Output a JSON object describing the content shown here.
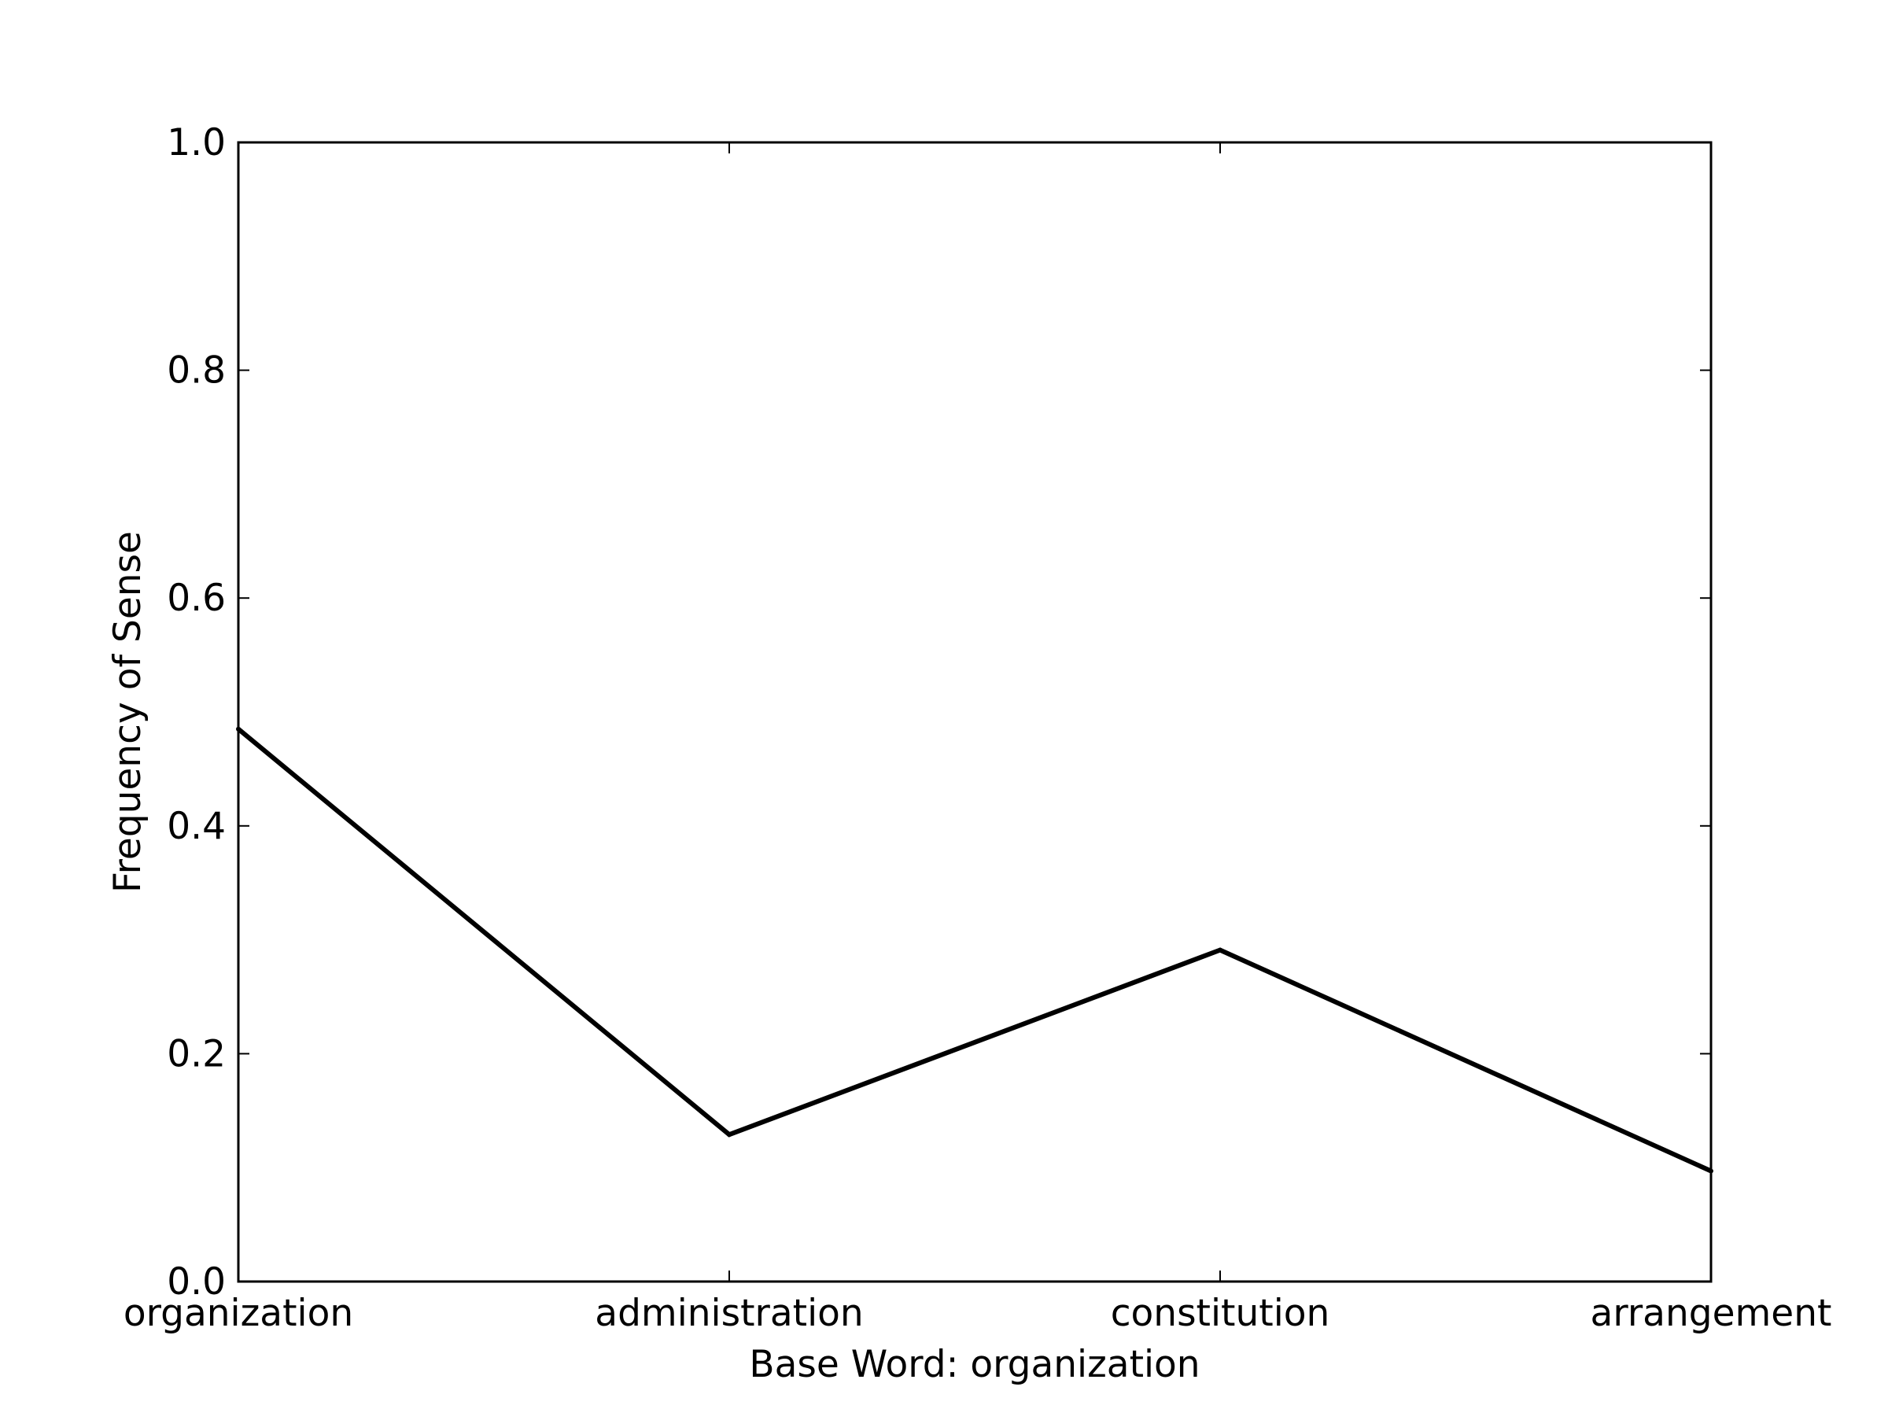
{
  "chart_data": {
    "type": "line",
    "title": "",
    "xlabel": "Base Word: organization",
    "ylabel": "Frequency of Sense",
    "categories": [
      "organization",
      "administration",
      "constitution",
      "arrangement"
    ],
    "series": [
      {
        "values": [
          0.485,
          0.129,
          0.291,
          0.097
        ]
      }
    ],
    "ylim": [
      0.0,
      1.0
    ],
    "yticks": [
      "0.0",
      "0.2",
      "0.4",
      "0.6",
      "0.8",
      "1.0"
    ],
    "grid": false,
    "legend": "none",
    "line_color": "#000000"
  }
}
